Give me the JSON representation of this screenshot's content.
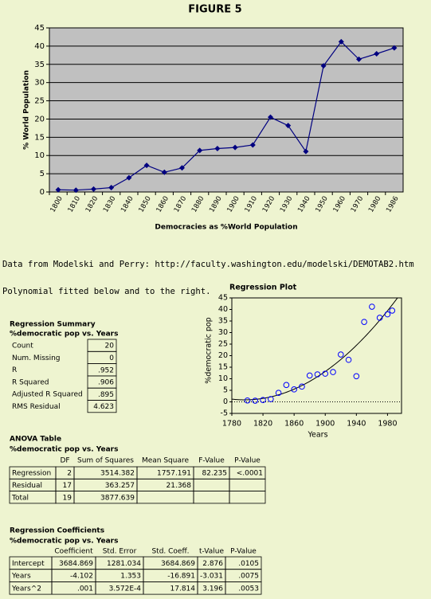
{
  "header": {
    "title": "FIGURE 5"
  },
  "chart_data": [
    {
      "type": "line",
      "categories": [
        "1800",
        "1810",
        "1820",
        "1830",
        "1840",
        "1850",
        "1860",
        "1870",
        "1880",
        "1890",
        "1900",
        "1910",
        "1920",
        "1930",
        "1940",
        "1950",
        "1960",
        "1970",
        "1980",
        "1986"
      ],
      "values": [
        0.6,
        0.5,
        0.8,
        1.2,
        3.9,
        7.3,
        5.4,
        6.6,
        11.4,
        11.9,
        12.2,
        12.9,
        20.5,
        18.2,
        11.1,
        34.6,
        41.2,
        36.4,
        37.9,
        39.5
      ],
      "color": "#000080",
      "ylabel": "% World Population",
      "xlabel": "Democracies as %World Population",
      "ylim": [
        0,
        45
      ],
      "yticks": [
        0,
        5,
        10,
        15,
        20,
        25,
        30,
        35,
        40,
        45
      ],
      "grid": true
    },
    {
      "type": "scatter",
      "title": "Regression Plot",
      "x": [
        1800,
        1810,
        1820,
        1830,
        1840,
        1850,
        1860,
        1870,
        1880,
        1890,
        1900,
        1910,
        1920,
        1930,
        1940,
        1950,
        1960,
        1970,
        1980,
        1986
      ],
      "values": [
        0.6,
        0.5,
        0.8,
        1.2,
        3.9,
        7.3,
        5.4,
        6.6,
        11.4,
        11.9,
        12.2,
        12.9,
        20.5,
        18.2,
        11.1,
        34.6,
        41.2,
        36.4,
        37.9,
        39.5
      ],
      "color": "#0000ff",
      "xlabel": "Years",
      "ylabel": "%democratic pop",
      "xlim": [
        1780,
        1998
      ],
      "xticks": [
        1780,
        1820,
        1860,
        1900,
        1940,
        1980
      ],
      "ylim": [
        -5,
        45
      ],
      "yticks": [
        -5,
        0,
        5,
        10,
        15,
        20,
        25,
        30,
        35,
        40,
        45
      ]
    }
  ],
  "notes": [
    "Data from Modelski and Perry:  http://faculty.washington.edu/modelski/DEMOTAB2.htm",
    "Polynomial fitted below and to the right."
  ],
  "regression_summary": {
    "title": "Regression Summary",
    "subtitle": "%democratic pop vs. Years",
    "rows": [
      {
        "label": "Count",
        "value": "20"
      },
      {
        "label": "Num. Missing",
        "value": "0"
      },
      {
        "label": "R",
        "value": ".952"
      },
      {
        "label": "R Squared",
        "value": ".906"
      },
      {
        "label": "Adjusted R Squared",
        "value": ".895"
      },
      {
        "label": "RMS Residual",
        "value": "4.623"
      }
    ]
  },
  "anova": {
    "title": "ANOVA Table",
    "subtitle": "%democratic pop vs. Years",
    "columns": [
      "DF",
      "Sum of Squares",
      "Mean Square",
      "F-Value",
      "P-Value"
    ],
    "rows": [
      {
        "label": "Regression",
        "cells": [
          "2",
          "3514.382",
          "1757.191",
          "82.235",
          "<.0001"
        ]
      },
      {
        "label": "Residual",
        "cells": [
          "17",
          "363.257",
          "21.368",
          null,
          null
        ]
      },
      {
        "label": "Total",
        "cells": [
          "19",
          "3877.639",
          null,
          null,
          null
        ]
      }
    ]
  },
  "coefficients": {
    "title": "Regression Coefficients",
    "subtitle": "%democratic pop vs. Years",
    "columns": [
      "Coefficient",
      "Std. Error",
      "Std. Coeff.",
      "t-Value",
      "P-Value"
    ],
    "rows": [
      {
        "label": "Intercept",
        "cells": [
          "3684.869",
          "1281.034",
          "3684.869",
          "2.876",
          ".0105"
        ]
      },
      {
        "label": "Years",
        "cells": [
          "-4.102",
          "1.353",
          "-16.891",
          "-3.031",
          ".0075"
        ]
      },
      {
        "label": "Years^2",
        "cells": [
          ".001",
          "3.572E-4",
          "17.814",
          "3.196",
          ".0053"
        ]
      }
    ]
  }
}
